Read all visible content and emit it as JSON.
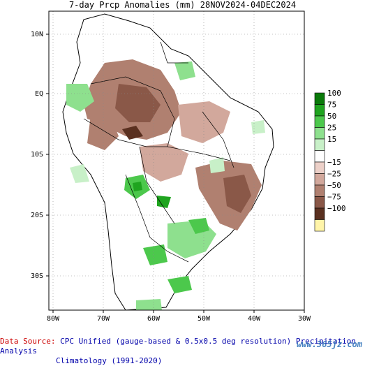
{
  "title": "7-day Prcp Anomalies (mm) 28NOV2024-04DEC2024",
  "lat_labels": [
    "10N",
    "EQ",
    "10S",
    "20S",
    "30S"
  ],
  "lon_labels": [
    "80W",
    "70W",
    "60W",
    "50W",
    "40W",
    "30W"
  ],
  "legend": {
    "entries": [
      {
        "label": "100",
        "color": "#0a7a0a"
      },
      {
        "label": "75",
        "color": "#1fa41f"
      },
      {
        "label": "50",
        "color": "#4cc84c"
      },
      {
        "label": "25",
        "color": "#8ee08e"
      },
      {
        "label": "15",
        "color": "#c8f0c8"
      },
      {
        "label": "",
        "color": "#ffffff"
      },
      {
        "label": "−15",
        "color": "#ecd0c8"
      },
      {
        "label": "−25",
        "color": "#d2a89c"
      },
      {
        "label": "−50",
        "color": "#b08070"
      },
      {
        "label": "−75",
        "color": "#8a5848"
      },
      {
        "label": "−100",
        "color": "#5a3020"
      },
      {
        "label": "",
        "color": "#fff4a8"
      }
    ]
  },
  "footer": {
    "source_label": "Data Source:",
    "source_text": "CPC Unified (gauge-based & 0.5x0.5 deg resolution) Precipitation Analysis",
    "climatology": "Climatology (1991-2020)"
  },
  "watermark": "www.365jz.com"
}
